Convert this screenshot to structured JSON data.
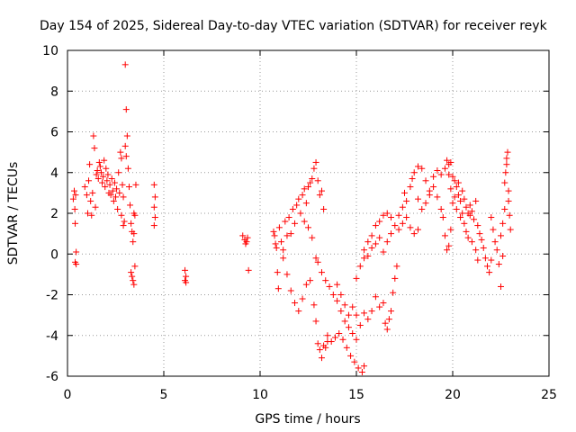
{
  "chart_data": {
    "type": "scatter",
    "title": "Day 154 of 2025, Sidereal Day-to-day VTEC variation (SDTVAR) for receiver reyk",
    "xlabel": "GPS time / hours",
    "ylabel": "SDTVAR / TECUs",
    "xlim": [
      0,
      25
    ],
    "ylim": [
      -6,
      10
    ],
    "xticks": [
      "0",
      "5",
      "10",
      "15",
      "20",
      "25"
    ],
    "yticks": [
      "-6",
      "-4",
      "-2",
      "0",
      "2",
      "4",
      "6",
      "8",
      "10"
    ],
    "grid": true,
    "marker": "+",
    "color": "#ff0000",
    "series": [
      {
        "name": "SDTVAR",
        "points": [
          [
            0.3,
            2.7
          ],
          [
            0.35,
            3.1
          ],
          [
            0.38,
            2.2
          ],
          [
            0.4,
            1.5
          ],
          [
            0.42,
            2.9
          ],
          [
            0.45,
            0.1
          ],
          [
            0.4,
            -0.4
          ],
          [
            0.45,
            -0.5
          ],
          [
            0.9,
            3.3
          ],
          [
            1.0,
            2.9
          ],
          [
            1.05,
            2.0
          ],
          [
            1.1,
            3.6
          ],
          [
            1.15,
            4.4
          ],
          [
            1.2,
            2.6
          ],
          [
            1.25,
            1.9
          ],
          [
            1.3,
            3.0
          ],
          [
            1.35,
            5.8
          ],
          [
            1.4,
            5.2
          ],
          [
            1.45,
            2.3
          ],
          [
            1.5,
            3.9
          ],
          [
            1.55,
            4.1
          ],
          [
            1.6,
            3.7
          ],
          [
            1.65,
            4.5
          ],
          [
            1.7,
            4.3
          ],
          [
            1.75,
            4.0
          ],
          [
            1.8,
            3.5
          ],
          [
            1.85,
            3.8
          ],
          [
            1.9,
            4.6
          ],
          [
            1.95,
            3.3
          ],
          [
            2.0,
            4.2
          ],
          [
            2.05,
            3.6
          ],
          [
            2.1,
            3.9
          ],
          [
            2.15,
            3.0
          ],
          [
            2.2,
            3.4
          ],
          [
            2.25,
            2.9
          ],
          [
            2.3,
            3.7
          ],
          [
            2.35,
            3.1
          ],
          [
            2.4,
            2.6
          ],
          [
            2.45,
            3.5
          ],
          [
            2.5,
            2.8
          ],
          [
            2.55,
            3.2
          ],
          [
            2.6,
            2.2
          ],
          [
            2.65,
            4.0
          ],
          [
            2.7,
            3.0
          ],
          [
            2.75,
            5.0
          ],
          [
            2.8,
            4.7
          ],
          [
            2.85,
            3.4
          ],
          [
            2.9,
            2.8
          ],
          [
            2.95,
            1.6
          ],
          [
            2.8,
            1.9
          ],
          [
            2.9,
            1.4
          ],
          [
            3.0,
            5.3
          ],
          [
            3.05,
            4.8
          ],
          [
            3.0,
            9.3
          ],
          [
            3.05,
            7.1
          ],
          [
            3.1,
            5.8
          ],
          [
            3.15,
            4.2
          ],
          [
            3.2,
            3.3
          ],
          [
            3.25,
            2.4
          ],
          [
            3.3,
            1.5
          ],
          [
            3.35,
            1.1
          ],
          [
            3.4,
            0.6
          ],
          [
            3.45,
            1.0
          ],
          [
            3.5,
            1.9
          ],
          [
            3.55,
            3.4
          ],
          [
            3.45,
            2.0
          ],
          [
            3.3,
            -0.9
          ],
          [
            3.35,
            -1.1
          ],
          [
            3.4,
            -1.3
          ],
          [
            3.45,
            -1.5
          ],
          [
            3.5,
            -0.6
          ],
          [
            4.5,
            3.4
          ],
          [
            4.55,
            2.8
          ],
          [
            4.5,
            2.3
          ],
          [
            4.55,
            1.8
          ],
          [
            4.5,
            1.4
          ],
          [
            6.1,
            -0.8
          ],
          [
            6.15,
            -1.1
          ],
          [
            6.1,
            -1.3
          ],
          [
            6.15,
            -1.4
          ],
          [
            9.1,
            0.9
          ],
          [
            9.2,
            0.7
          ],
          [
            9.25,
            0.5
          ],
          [
            9.3,
            0.6
          ],
          [
            9.35,
            0.8
          ],
          [
            9.4,
            -0.8
          ],
          [
            10.7,
            1.1
          ],
          [
            10.75,
            0.9
          ],
          [
            10.8,
            0.5
          ],
          [
            10.85,
            0.3
          ],
          [
            10.9,
            -0.9
          ],
          [
            10.95,
            -1.7
          ],
          [
            11.0,
            1.3
          ],
          [
            11.1,
            0.6
          ],
          [
            11.2,
            0.2
          ],
          [
            11.3,
            1.6
          ],
          [
            11.4,
            0.9
          ],
          [
            11.5,
            1.8
          ],
          [
            11.6,
            1.0
          ],
          [
            11.7,
            2.2
          ],
          [
            11.8,
            1.5
          ],
          [
            11.9,
            2.4
          ],
          [
            12.0,
            2.7
          ],
          [
            12.1,
            2.0
          ],
          [
            12.2,
            2.9
          ],
          [
            12.3,
            3.2
          ],
          [
            12.4,
            2.5
          ],
          [
            12.5,
            3.3
          ],
          [
            12.6,
            3.5
          ],
          [
            12.7,
            3.7
          ],
          [
            12.8,
            4.2
          ],
          [
            12.9,
            4.5
          ],
          [
            13.0,
            3.6
          ],
          [
            13.1,
            2.9
          ],
          [
            13.2,
            3.1
          ],
          [
            13.3,
            2.2
          ],
          [
            11.2,
            -0.2
          ],
          [
            11.4,
            -1.0
          ],
          [
            11.6,
            -1.8
          ],
          [
            11.8,
            -2.4
          ],
          [
            12.0,
            -2.8
          ],
          [
            12.2,
            -2.2
          ],
          [
            12.4,
            -1.5
          ],
          [
            12.6,
            -1.3
          ],
          [
            12.8,
            -2.5
          ],
          [
            12.9,
            -3.3
          ],
          [
            13.0,
            -4.4
          ],
          [
            13.1,
            -4.7
          ],
          [
            13.2,
            -5.1
          ],
          [
            13.3,
            -4.5
          ],
          [
            13.4,
            -4.6
          ],
          [
            13.5,
            -4.3
          ],
          [
            12.3,
            1.6
          ],
          [
            12.5,
            1.3
          ],
          [
            12.7,
            0.8
          ],
          [
            12.9,
            -0.2
          ],
          [
            13.0,
            -0.4
          ],
          [
            13.2,
            -0.9
          ],
          [
            13.4,
            -1.3
          ],
          [
            13.6,
            -1.6
          ],
          [
            13.8,
            -2.0
          ],
          [
            14.0,
            -2.3
          ],
          [
            14.2,
            -2.8
          ],
          [
            14.4,
            -3.3
          ],
          [
            14.6,
            -3.6
          ],
          [
            14.8,
            -3.9
          ],
          [
            15.0,
            -4.2
          ],
          [
            13.5,
            -4.0
          ],
          [
            13.7,
            -4.3
          ],
          [
            13.9,
            -4.1
          ],
          [
            14.1,
            -3.9
          ],
          [
            14.3,
            -4.2
          ],
          [
            14.5,
            -4.6
          ],
          [
            14.7,
            -5.0
          ],
          [
            14.9,
            -5.3
          ],
          [
            15.1,
            -5.6
          ],
          [
            15.3,
            -5.8
          ],
          [
            15.4,
            -5.5
          ],
          [
            14.0,
            -1.5
          ],
          [
            14.2,
            -2.0
          ],
          [
            14.4,
            -2.5
          ],
          [
            14.6,
            -3.0
          ],
          [
            14.8,
            -2.6
          ],
          [
            15.0,
            -3.0
          ],
          [
            15.2,
            -3.5
          ],
          [
            15.4,
            -2.9
          ],
          [
            15.6,
            -3.2
          ],
          [
            15.8,
            -2.8
          ],
          [
            16.0,
            -2.1
          ],
          [
            16.2,
            -2.6
          ],
          [
            16.4,
            -2.4
          ],
          [
            16.5,
            -3.4
          ],
          [
            16.6,
            -3.7
          ],
          [
            16.7,
            -3.2
          ],
          [
            16.8,
            -2.8
          ],
          [
            16.9,
            -1.9
          ],
          [
            17.0,
            -1.2
          ],
          [
            17.1,
            -0.6
          ],
          [
            15.0,
            -1.2
          ],
          [
            15.2,
            -0.6
          ],
          [
            15.4,
            -0.2
          ],
          [
            15.6,
            0.6
          ],
          [
            15.8,
            0.9
          ],
          [
            16.0,
            1.4
          ],
          [
            16.2,
            1.6
          ],
          [
            16.4,
            1.9
          ],
          [
            16.6,
            2.0
          ],
          [
            16.8,
            1.8
          ],
          [
            17.0,
            1.4
          ],
          [
            17.2,
            1.2
          ],
          [
            17.4,
            1.5
          ],
          [
            17.6,
            1.8
          ],
          [
            17.8,
            1.3
          ],
          [
            18.0,
            1.0
          ],
          [
            18.2,
            1.2
          ],
          [
            15.4,
            0.2
          ],
          [
            15.6,
            -0.1
          ],
          [
            15.8,
            0.3
          ],
          [
            16.0,
            0.5
          ],
          [
            16.2,
            0.8
          ],
          [
            16.4,
            0.1
          ],
          [
            16.6,
            0.6
          ],
          [
            16.8,
            1.0
          ],
          [
            17.2,
            1.9
          ],
          [
            17.4,
            2.3
          ],
          [
            17.5,
            3.0
          ],
          [
            17.6,
            2.6
          ],
          [
            17.8,
            3.3
          ],
          [
            17.9,
            3.7
          ],
          [
            18.0,
            4.0
          ],
          [
            18.2,
            4.3
          ],
          [
            18.4,
            4.2
          ],
          [
            18.6,
            3.6
          ],
          [
            18.8,
            3.1
          ],
          [
            19.0,
            3.8
          ],
          [
            19.2,
            4.1
          ],
          [
            19.4,
            3.9
          ],
          [
            19.6,
            4.2
          ],
          [
            19.7,
            4.6
          ],
          [
            19.8,
            4.4
          ],
          [
            19.9,
            4.5
          ],
          [
            18.2,
            2.7
          ],
          [
            18.4,
            2.2
          ],
          [
            18.6,
            2.5
          ],
          [
            18.8,
            2.9
          ],
          [
            19.0,
            3.3
          ],
          [
            19.2,
            2.8
          ],
          [
            19.4,
            2.2
          ],
          [
            19.5,
            1.8
          ],
          [
            19.6,
            0.9
          ],
          [
            19.7,
            0.2
          ],
          [
            19.8,
            0.4
          ],
          [
            19.9,
            1.2
          ],
          [
            20.0,
            2.5
          ],
          [
            20.1,
            3.6
          ],
          [
            20.2,
            3.3
          ],
          [
            20.3,
            2.9
          ],
          [
            20.4,
            2.6
          ],
          [
            20.5,
            3.1
          ],
          [
            20.6,
            2.7
          ],
          [
            20.7,
            2.3
          ],
          [
            20.8,
            2.0
          ],
          [
            20.9,
            2.4
          ],
          [
            21.0,
            2.1
          ],
          [
            21.1,
            1.7
          ],
          [
            21.2,
            2.6
          ],
          [
            21.3,
            1.4
          ],
          [
            21.4,
            1.0
          ],
          [
            21.5,
            0.7
          ],
          [
            21.6,
            0.3
          ],
          [
            21.7,
            -0.2
          ],
          [
            21.8,
            -0.6
          ],
          [
            21.9,
            -0.9
          ],
          [
            22.0,
            -0.3
          ],
          [
            19.8,
            3.9
          ],
          [
            19.9,
            3.2
          ],
          [
            20.0,
            3.8
          ],
          [
            20.1,
            2.8
          ],
          [
            20.2,
            2.2
          ],
          [
            20.3,
            3.5
          ],
          [
            20.4,
            1.8
          ],
          [
            20.5,
            2.0
          ],
          [
            20.6,
            1.5
          ],
          [
            20.7,
            1.1
          ],
          [
            20.8,
            0.8
          ],
          [
            20.9,
            1.9
          ],
          [
            21.0,
            0.6
          ],
          [
            21.2,
            0.2
          ],
          [
            21.3,
            -0.3
          ],
          [
            22.0,
            1.8
          ],
          [
            22.1,
            1.2
          ],
          [
            22.2,
            0.6
          ],
          [
            22.3,
            0.2
          ],
          [
            22.4,
            -0.5
          ],
          [
            22.5,
            -1.6
          ],
          [
            22.5,
            0.9
          ],
          [
            22.6,
            1.5
          ],
          [
            22.6,
            -0.1
          ],
          [
            22.7,
            2.2
          ],
          [
            22.7,
            3.5
          ],
          [
            22.75,
            4.0
          ],
          [
            22.8,
            4.7
          ],
          [
            22.85,
            5.0
          ],
          [
            22.8,
            4.4
          ],
          [
            22.9,
            3.1
          ],
          [
            22.9,
            2.6
          ],
          [
            22.95,
            1.9
          ],
          [
            23.0,
            1.2
          ]
        ]
      }
    ]
  }
}
